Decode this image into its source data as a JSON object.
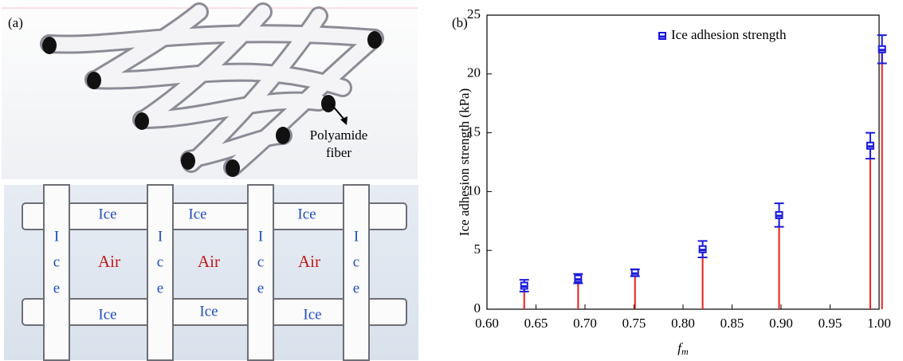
{
  "panel_a": {
    "label": "(a)",
    "fiber_label": [
      "Polyamide",
      "fiber"
    ],
    "ice": "Ice",
    "air": "Air",
    "ice_vertical": [
      "I",
      "c",
      "e"
    ]
  },
  "chart_data": {
    "type": "stem",
    "panel_label": "(b)",
    "ylabel": "Ice adhesion strength (kPa)",
    "xlabel": "f",
    "xlabel_subscript": "m",
    "x": [
      0.638,
      0.693,
      0.751,
      0.82,
      0.898,
      0.991,
      1.003
    ],
    "series": [
      {
        "name": "Ice adhesion strength",
        "color": "#1a1adc",
        "stem_color": "#e8201c",
        "values": [
          2.0,
          2.6,
          3.1,
          5.1,
          8.0,
          13.9,
          22.1
        ],
        "errors": [
          0.5,
          0.4,
          0.3,
          0.7,
          1.0,
          1.1,
          1.2
        ]
      }
    ],
    "xlim": [
      0.6,
      1.0
    ],
    "xticks": [
      {
        "value": 0.6,
        "label": "0.60"
      },
      {
        "value": 0.65,
        "label": "0.65"
      },
      {
        "value": 0.7,
        "label": "0.70"
      },
      {
        "value": 0.75,
        "label": "0.75"
      },
      {
        "value": 0.8,
        "label": "0.80"
      },
      {
        "value": 0.85,
        "label": "0.85"
      },
      {
        "value": 0.9,
        "label": "0.90"
      },
      {
        "value": 0.95,
        "label": "0.95"
      },
      {
        "value": 1.0,
        "label": "1.00"
      }
    ],
    "ylim": [
      0,
      25
    ],
    "yticks": [
      0,
      5,
      10,
      15,
      20,
      25
    ],
    "legend": "top"
  }
}
